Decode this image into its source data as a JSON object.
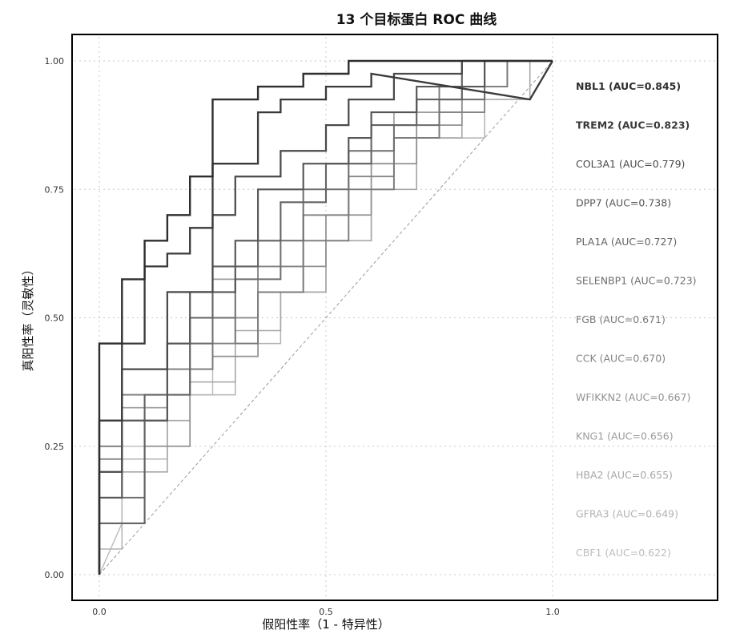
{
  "chart_data": {
    "type": "line",
    "title": "13 个目标蛋白 ROC 曲线",
    "xlabel": "假阳性率（1 - 特异性）",
    "ylabel": "真阳性率（灵敏性）",
    "xlim": [
      0,
      1
    ],
    "ylim": [
      0,
      1
    ],
    "xticks": [
      "0.0",
      "0.5",
      "1.0"
    ],
    "yticks": [
      "0.00",
      "0.25",
      "0.50",
      "0.75",
      "1.00"
    ],
    "grid": true,
    "legend_position": "right",
    "reference_line": "diagonal",
    "series": [
      {
        "name": "NBL1 (AUC=0.845)",
        "color": "#2e2e2e",
        "x": [
          0,
          0,
          0.05,
          0.05,
          0.1,
          0.1,
          0.15,
          0.15,
          0.2,
          0.2,
          0.25,
          0.25,
          0.35,
          0.35,
          0.45,
          0.45,
          0.55,
          0.55,
          0.65,
          0.65,
          1
        ],
        "y": [
          0,
          0.45,
          0.45,
          0.575,
          0.575,
          0.65,
          0.65,
          0.7,
          0.7,
          0.775,
          0.775,
          0.925,
          0.925,
          0.95,
          0.95,
          0.975,
          0.975,
          1,
          1,
          1,
          1
        ]
      },
      {
        "name": "TREM2 (AUC=0.823)",
        "color": "#3a3a3a",
        "x": [
          0,
          0,
          0.05,
          0.05,
          0.1,
          0.1,
          0.15,
          0.15,
          0.2,
          0.2,
          0.25,
          0.25,
          0.35,
          0.35,
          0.4,
          0.4,
          0.5,
          0.5,
          0.6,
          0.6,
          0.95,
          1
        ],
        "y": [
          0,
          0.3,
          0.3,
          0.45,
          0.45,
          0.6,
          0.6,
          0.625,
          0.625,
          0.675,
          0.675,
          0.8,
          0.8,
          0.9,
          0.9,
          0.925,
          0.925,
          0.95,
          0.95,
          0.975,
          0.925,
          1
        ]
      },
      {
        "name": "COL3A1 (AUC=0.779)",
        "color": "#4a4a4a",
        "x": [
          0,
          0,
          0.05,
          0.05,
          0.15,
          0.15,
          0.25,
          0.25,
          0.3,
          0.3,
          0.4,
          0.4,
          0.5,
          0.5,
          0.55,
          0.55,
          0.65,
          0.65,
          0.8,
          0.8,
          1
        ],
        "y": [
          0,
          0.2,
          0.2,
          0.4,
          0.4,
          0.55,
          0.55,
          0.7,
          0.7,
          0.775,
          0.775,
          0.825,
          0.825,
          0.875,
          0.875,
          0.925,
          0.925,
          0.975,
          0.975,
          1,
          1
        ]
      },
      {
        "name": "DPP7 (AUC=0.738)",
        "color": "#575757",
        "x": [
          0,
          0,
          0.05,
          0.05,
          0.15,
          0.15,
          0.2,
          0.2,
          0.3,
          0.3,
          0.35,
          0.35,
          0.45,
          0.45,
          0.55,
          0.55,
          0.6,
          0.6,
          0.7,
          0.7,
          0.85,
          0.85,
          1
        ],
        "y": [
          0,
          0.15,
          0.15,
          0.3,
          0.3,
          0.45,
          0.45,
          0.55,
          0.55,
          0.65,
          0.65,
          0.75,
          0.75,
          0.8,
          0.8,
          0.85,
          0.85,
          0.9,
          0.9,
          0.95,
          0.95,
          1,
          1
        ]
      },
      {
        "name": "PLA1A (AUC=0.727)",
        "color": "#636363",
        "x": [
          0,
          0,
          0.1,
          0.1,
          0.2,
          0.2,
          0.25,
          0.25,
          0.35,
          0.35,
          0.4,
          0.4,
          0.5,
          0.5,
          0.6,
          0.6,
          0.7,
          0.7,
          0.8,
          0.8,
          1
        ],
        "y": [
          0,
          0.1,
          0.1,
          0.35,
          0.35,
          0.5,
          0.5,
          0.6,
          0.6,
          0.65,
          0.65,
          0.725,
          0.725,
          0.8,
          0.8,
          0.875,
          0.875,
          0.925,
          0.925,
          1,
          1
        ]
      },
      {
        "name": "SELENBP1 (AUC=0.723)",
        "color": "#6e6e6e",
        "x": [
          0,
          0,
          0.1,
          0.1,
          0.15,
          0.15,
          0.25,
          0.25,
          0.3,
          0.3,
          0.4,
          0.4,
          0.45,
          0.45,
          0.55,
          0.55,
          0.65,
          0.65,
          0.75,
          0.75,
          0.85,
          0.85,
          1
        ],
        "y": [
          0,
          0.15,
          0.15,
          0.3,
          0.3,
          0.45,
          0.45,
          0.5,
          0.5,
          0.575,
          0.575,
          0.65,
          0.65,
          0.75,
          0.75,
          0.825,
          0.825,
          0.875,
          0.875,
          0.925,
          0.925,
          1,
          1
        ]
      },
      {
        "name": "FGB (AUC=0.671)",
        "color": "#7a7a7a",
        "x": [
          0,
          0,
          0.05,
          0.05,
          0.15,
          0.15,
          0.25,
          0.25,
          0.3,
          0.3,
          0.35,
          0.35,
          0.45,
          0.45,
          0.55,
          0.55,
          0.65,
          0.65,
          0.75,
          0.75,
          0.9,
          0.9,
          1
        ],
        "y": [
          0,
          0.25,
          0.25,
          0.35,
          0.35,
          0.4,
          0.4,
          0.5,
          0.5,
          0.45,
          0.45,
          0.55,
          0.55,
          0.65,
          0.65,
          0.75,
          0.75,
          0.85,
          0.85,
          0.95,
          0.95,
          1,
          1
        ]
      },
      {
        "name": "CCK (AUC=0.670)",
        "color": "#858585",
        "x": [
          0,
          0,
          0.05,
          0.05,
          0.1,
          0.1,
          0.2,
          0.2,
          0.3,
          0.3,
          0.35,
          0.35,
          0.45,
          0.45,
          0.55,
          0.55,
          0.65,
          0.65,
          0.75,
          0.75,
          0.85,
          0.85,
          1
        ],
        "y": [
          0,
          0.225,
          0.225,
          0.3,
          0.3,
          0.35,
          0.35,
          0.45,
          0.45,
          0.5,
          0.5,
          0.6,
          0.6,
          0.7,
          0.7,
          0.775,
          0.775,
          0.85,
          0.85,
          0.9,
          0.9,
          1,
          1
        ]
      },
      {
        "name": "WFIKKN2 (AUC=0.667)",
        "color": "#919191",
        "x": [
          0,
          0,
          0.1,
          0.1,
          0.2,
          0.2,
          0.25,
          0.25,
          0.35,
          0.35,
          0.45,
          0.45,
          0.5,
          0.5,
          0.6,
          0.6,
          0.7,
          0.7,
          0.8,
          0.8,
          0.9,
          0.9,
          1
        ],
        "y": [
          0,
          0.1,
          0.1,
          0.25,
          0.25,
          0.4,
          0.4,
          0.425,
          0.425,
          0.55,
          0.55,
          0.6,
          0.6,
          0.7,
          0.7,
          0.8,
          0.8,
          0.875,
          0.875,
          0.95,
          0.95,
          1,
          1
        ]
      },
      {
        "name": "KNG1 (AUC=0.656)",
        "color": "#9c9c9c",
        "x": [
          0,
          0,
          0.05,
          0.05,
          0.15,
          0.15,
          0.2,
          0.2,
          0.25,
          0.25,
          0.35,
          0.35,
          0.45,
          0.45,
          0.55,
          0.55,
          0.65,
          0.65,
          0.8,
          0.8,
          1
        ],
        "y": [
          0,
          0.2,
          0.2,
          0.325,
          0.325,
          0.45,
          0.45,
          0.55,
          0.55,
          0.575,
          0.575,
          0.6,
          0.6,
          0.7,
          0.7,
          0.8,
          0.8,
          0.9,
          0.9,
          1,
          1
        ]
      },
      {
        "name": "HBA2 (AUC=0.655)",
        "color": "#a7a7a7",
        "x": [
          0,
          0,
          0.05,
          0.05,
          0.15,
          0.15,
          0.2,
          0.2,
          0.3,
          0.3,
          0.4,
          0.4,
          0.5,
          0.5,
          0.6,
          0.6,
          0.7,
          0.7,
          0.8,
          0.8,
          0.95,
          0.95,
          1
        ],
        "y": [
          0,
          0.15,
          0.15,
          0.2,
          0.2,
          0.3,
          0.3,
          0.375,
          0.375,
          0.475,
          0.475,
          0.55,
          0.55,
          0.65,
          0.65,
          0.75,
          0.75,
          0.85,
          0.85,
          0.925,
          0.925,
          1,
          1
        ]
      },
      {
        "name": "GFRA3 (AUC=0.649)",
        "color": "#b3b3b3",
        "x": [
          0,
          0,
          0.05,
          0.05,
          0.15,
          0.15,
          0.2,
          0.2,
          0.3,
          0.3,
          0.4,
          0.4,
          0.5,
          0.5,
          0.6,
          0.6,
          0.7,
          0.7,
          0.85,
          0.85,
          1
        ],
        "y": [
          0,
          0.05,
          0.05,
          0.225,
          0.225,
          0.3,
          0.3,
          0.35,
          0.35,
          0.45,
          0.45,
          0.55,
          0.55,
          0.65,
          0.65,
          0.75,
          0.75,
          0.85,
          0.85,
          1,
          1
        ]
      },
      {
        "name": "CBF1 (AUC=0.622)",
        "color": "#bdbdbd",
        "x": [
          0,
          0.05,
          0.05,
          0.1,
          0.1,
          0.15,
          0.15,
          0.25,
          0.25,
          0.35,
          0.35,
          0.45,
          0.45,
          0.55,
          0.55,
          0.7,
          0.7,
          0.8,
          0.8,
          1
        ],
        "y": [
          0,
          0.1,
          0.25,
          0.25,
          0.3,
          0.3,
          0.35,
          0.35,
          0.45,
          0.45,
          0.55,
          0.55,
          0.65,
          0.65,
          0.8,
          0.8,
          0.9,
          0.9,
          1,
          1
        ]
      }
    ]
  }
}
